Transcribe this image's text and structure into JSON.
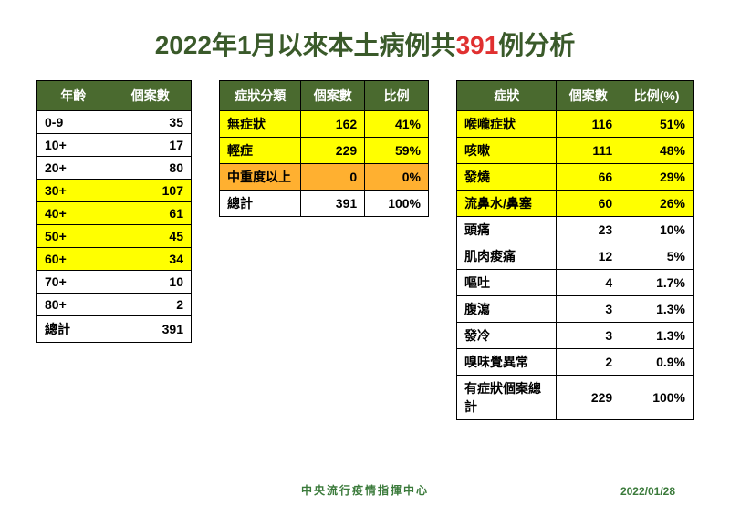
{
  "title": {
    "pre": "2022年1月以來本土病例共",
    "count": "391",
    "post": "例分析"
  },
  "colors": {
    "header_bg": "#4a6a2f",
    "header_fg": "#ffffff",
    "title_fg": "#3a5a2a",
    "accent_red": "#e03030",
    "hl_yellow": "#ffff00",
    "hl_orange": "#ffb030",
    "footer_fg": "#3a7a3a"
  },
  "table_age": {
    "type": "table",
    "columns": [
      "年齡",
      "個案數"
    ],
    "rows": [
      {
        "cells": [
          "0-9",
          "35"
        ],
        "hl": null
      },
      {
        "cells": [
          "10+",
          "17"
        ],
        "hl": null
      },
      {
        "cells": [
          "20+",
          "80"
        ],
        "hl": null
      },
      {
        "cells": [
          "30+",
          "107"
        ],
        "hl": "yellow"
      },
      {
        "cells": [
          "40+",
          "61"
        ],
        "hl": "yellow"
      },
      {
        "cells": [
          "50+",
          "45"
        ],
        "hl": "yellow"
      },
      {
        "cells": [
          "60+",
          "34"
        ],
        "hl": "yellow"
      },
      {
        "cells": [
          "70+",
          "10"
        ],
        "hl": null
      },
      {
        "cells": [
          "80+",
          "2"
        ],
        "hl": null
      },
      {
        "cells": [
          "總計",
          "391"
        ],
        "hl": null
      }
    ]
  },
  "table_severity": {
    "type": "table",
    "columns": [
      "症狀分類",
      "個案數",
      "比例"
    ],
    "rows": [
      {
        "cells": [
          "無症狀",
          "162",
          "41%"
        ],
        "hl": "yellow"
      },
      {
        "cells": [
          "輕症",
          "229",
          "59%"
        ],
        "hl": "yellow"
      },
      {
        "cells": [
          "中重度以上",
          "0",
          "0%"
        ],
        "hl": "orange"
      },
      {
        "cells": [
          "總計",
          "391",
          "100%"
        ],
        "hl": null
      }
    ]
  },
  "table_symptom": {
    "type": "table",
    "columns": [
      "症狀",
      "個案數",
      "比例(%)"
    ],
    "rows": [
      {
        "cells": [
          "喉嚨症狀",
          "116",
          "51%"
        ],
        "hl": "yellow"
      },
      {
        "cells": [
          "咳嗽",
          "111",
          "48%"
        ],
        "hl": "yellow"
      },
      {
        "cells": [
          "發燒",
          "66",
          "29%"
        ],
        "hl": "yellow"
      },
      {
        "cells": [
          "流鼻水/鼻塞",
          "60",
          "26%"
        ],
        "hl": "yellow"
      },
      {
        "cells": [
          "頭痛",
          "23",
          "10%"
        ],
        "hl": null
      },
      {
        "cells": [
          "肌肉痠痛",
          "12",
          "5%"
        ],
        "hl": null
      },
      {
        "cells": [
          "嘔吐",
          "4",
          "1.7%"
        ],
        "hl": null
      },
      {
        "cells": [
          "腹瀉",
          "3",
          "1.3%"
        ],
        "hl": null
      },
      {
        "cells": [
          "發冷",
          "3",
          "1.3%"
        ],
        "hl": null
      },
      {
        "cells": [
          "嗅味覺異常",
          "2",
          "0.9%"
        ],
        "hl": null
      },
      {
        "cells": [
          "有症狀個案總計",
          "229",
          "100%"
        ],
        "hl": null
      }
    ]
  },
  "footer": {
    "org": "中央流行疫情指揮中心",
    "date": "2022/01/28"
  }
}
